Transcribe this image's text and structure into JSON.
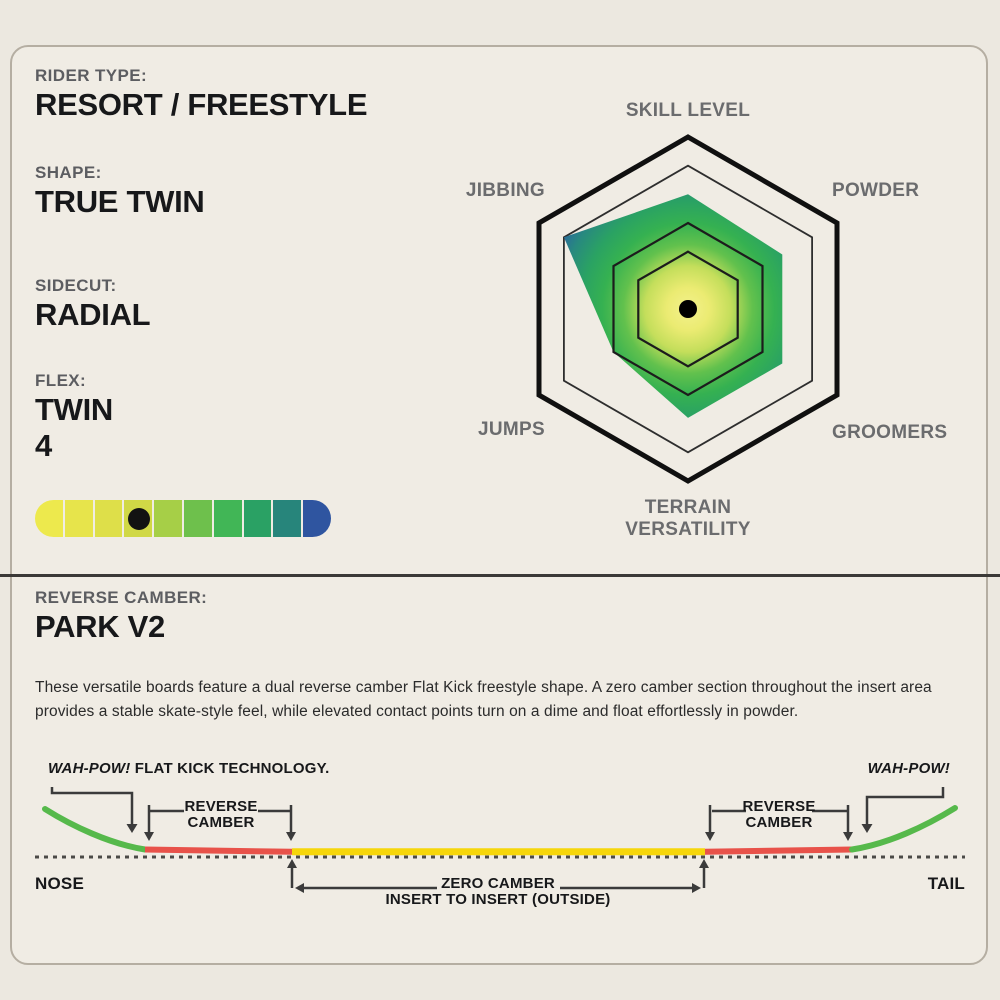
{
  "page_bg": "#ece8e0",
  "specs": {
    "rider_type_label": "RIDER TYPE:",
    "rider_type_value": "RESORT / FREESTYLE",
    "shape_label": "SHAPE:",
    "shape_value": "TRUE TWIN",
    "sidecut_label": "SIDECUT:",
    "sidecut_value": "RADIAL",
    "flex_label": "FLEX:",
    "flex_value": "TWIN",
    "flex_number": "4"
  },
  "flex_bar": {
    "max": 10,
    "value": 4,
    "segment_colors": [
      "#ede94d",
      "#e7e44b",
      "#dedf49",
      "#d0d846",
      "#a6cf47",
      "#6ec04c",
      "#41b656",
      "#2aa164",
      "#27857b",
      "#2f55a0"
    ],
    "dot_color": "#121212"
  },
  "chart_data": {
    "type": "radar",
    "title": "",
    "axes": [
      "SKILL LEVEL",
      "POWDER",
      "GROOMERS",
      "TERRAIN VERSATILITY",
      "JUMPS",
      "JIBBING"
    ],
    "values": [
      4,
      3.8,
      3.8,
      3.8,
      3,
      5
    ],
    "max": 6,
    "rings": [
      2,
      3,
      5,
      6
    ],
    "fill_gradient": [
      "#f3f18c",
      "#ebeb72",
      "#c4de5b",
      "#62c14d",
      "#35b151",
      "#2aa263",
      "#28897f",
      "#2b5fa4",
      "#2a2e96"
    ],
    "legend_position": "none",
    "grid": true
  },
  "radar_labels": {
    "skill": "SKILL LEVEL",
    "powder": "POWDER",
    "groomers": "GROOMERS",
    "terrain_line1": "TERRAIN",
    "terrain_line2": "VERSATILITY",
    "jumps": "JUMPS",
    "jibbing": "JIBBING"
  },
  "camber_section": {
    "label": "REVERSE CAMBER:",
    "title": "PARK V2",
    "description": "These versatile boards feature a dual reverse camber Flat Kick freestyle shape. A zero camber section throughout the insert area provides a stable skate-style feel, while elevated contact points turn on a dime and float effortlessly in powder."
  },
  "camber": {
    "wah_pow_left": "WAH-POW!",
    "flat_kick": "FLAT KICK TECHNOLOGY.",
    "reverse_left_line1": "REVERSE",
    "reverse_left_line2": "CAMBER",
    "reverse_right_line1": "REVERSE",
    "reverse_right_line2": "CAMBER",
    "wah_pow_right": "WAH-POW!",
    "zero_line1": "ZERO CAMBER",
    "zero_line2": "INSERT TO INSERT (OUTSIDE)",
    "nose": "NOSE",
    "tail": "TAIL",
    "colors": {
      "nose_tail": "#56b94b",
      "reverse": "#e8524a",
      "zero": "#f6d60b",
      "baseline": "#4b4a47",
      "bracket": "#3b3b3b"
    }
  }
}
